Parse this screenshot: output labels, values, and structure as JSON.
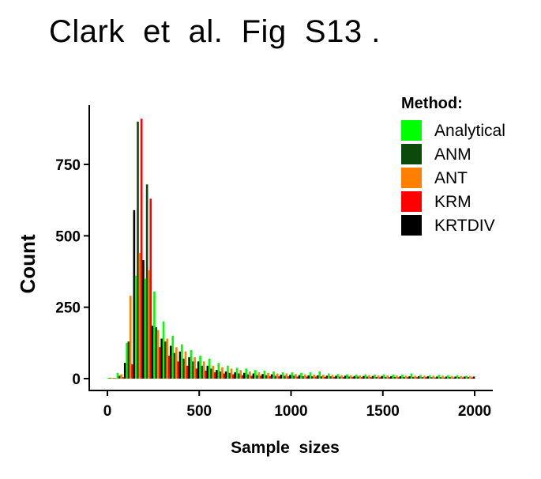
{
  "title": "Clark  et  al.  Fig  S13 .",
  "chart_data": {
    "type": "bar",
    "xlabel": "Sample  sizes",
    "ylabel": "Count",
    "xlim": [
      0,
      2000
    ],
    "ylim": [
      0,
      950
    ],
    "xticks": [
      0,
      500,
      1000,
      1500,
      2000
    ],
    "yticks": [
      0,
      250,
      500,
      750
    ],
    "grid": false,
    "legend": {
      "title": "Method:",
      "placement": "right"
    },
    "bin_width": 50,
    "x": [
      25,
      75,
      125,
      175,
      225,
      275,
      325,
      375,
      425,
      475,
      525,
      575,
      625,
      675,
      725,
      775,
      825,
      875,
      925,
      975,
      1025,
      1075,
      1125,
      1175,
      1225,
      1275,
      1325,
      1375,
      1425,
      1475,
      1525,
      1575,
      1625,
      1675,
      1725,
      1775,
      1825,
      1875,
      1925,
      1975
    ],
    "series": [
      {
        "name": "Analytical",
        "color": "#00ff00",
        "values": [
          3,
          20,
          125,
          360,
          350,
          305,
          200,
          150,
          120,
          100,
          80,
          70,
          55,
          45,
          38,
          35,
          30,
          28,
          25,
          22,
          22,
          20,
          22,
          25,
          18,
          16,
          15,
          14,
          15,
          14,
          15,
          14,
          14,
          18,
          13,
          12,
          13,
          12,
          12,
          10
        ]
      },
      {
        "name": "ANM",
        "color": "#0b4a0b",
        "values": [
          2,
          10,
          130,
          900,
          680,
          180,
          130,
          90,
          70,
          60,
          45,
          35,
          25,
          20,
          18,
          15,
          12,
          12,
          10,
          10,
          10,
          8,
          8,
          8,
          8,
          7,
          7,
          7,
          7,
          6,
          6,
          6,
          6,
          6,
          5,
          5,
          5,
          5,
          5,
          5
        ]
      },
      {
        "name": "ANT",
        "color": "#ff8000",
        "values": [
          3,
          15,
          290,
          440,
          380,
          170,
          140,
          110,
          95,
          75,
          60,
          45,
          40,
          35,
          30,
          25,
          22,
          20,
          18,
          18,
          16,
          15,
          14,
          14,
          13,
          12,
          12,
          11,
          12,
          11,
          11,
          11,
          10,
          10,
          10,
          10,
          10,
          9,
          9,
          9
        ]
      },
      {
        "name": "KRM",
        "color": "#ff0000",
        "values": [
          2,
          5,
          50,
          910,
          630,
          110,
          80,
          60,
          45,
          35,
          28,
          22,
          18,
          15,
          12,
          10,
          10,
          9,
          8,
          8,
          7,
          7,
          7,
          6,
          6,
          6,
          6,
          5,
          5,
          5,
          5,
          5,
          5,
          5,
          5,
          4,
          4,
          4,
          4,
          4
        ]
      },
      {
        "name": "KRTDIV",
        "color": "#000000",
        "values": [
          1,
          55,
          590,
          415,
          185,
          140,
          115,
          95,
          75,
          60,
          45,
          30,
          25,
          22,
          20,
          18,
          16,
          15,
          14,
          13,
          12,
          11,
          11,
          10,
          10,
          10,
          9,
          9,
          9,
          9,
          8,
          8,
          8,
          8,
          8,
          7,
          7,
          7,
          7,
          7
        ]
      }
    ]
  }
}
